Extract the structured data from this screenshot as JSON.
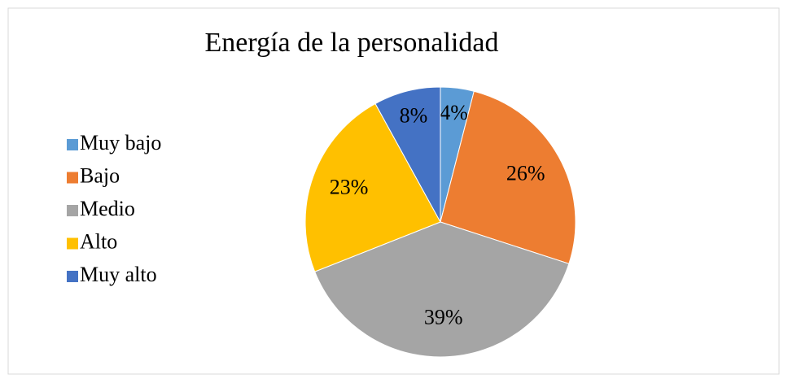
{
  "chart_data": {
    "type": "pie",
    "title": "Energía de la personalidad",
    "categories": [
      "Muy bajo",
      "Bajo",
      "Medio",
      "Alto",
      "Muy alto"
    ],
    "values": [
      4,
      26,
      39,
      23,
      8
    ],
    "value_labels": [
      "4%",
      "26%",
      "39%",
      "23%",
      "8%"
    ],
    "colors": [
      "#5b9bd5",
      "#ed7d31",
      "#a5a5a5",
      "#ffc000",
      "#4472c4"
    ],
    "legend": "left"
  }
}
